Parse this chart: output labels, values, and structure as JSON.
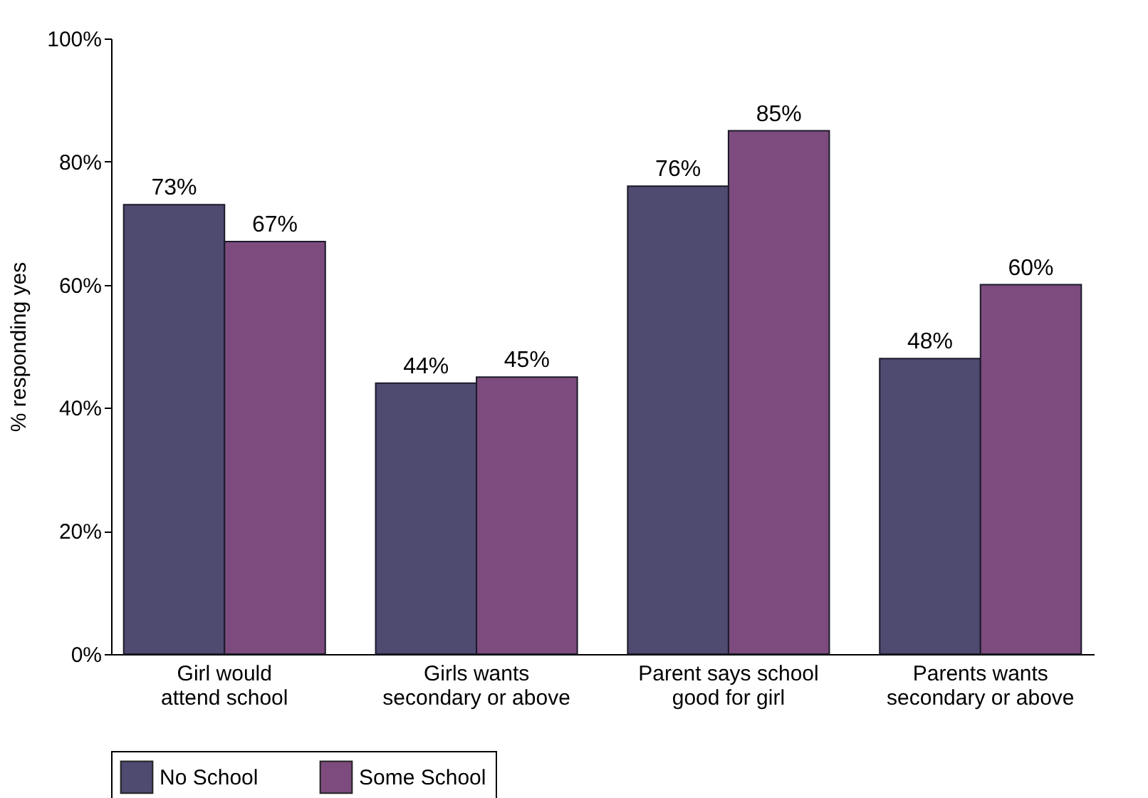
{
  "chart_data": {
    "type": "bar",
    "ylabel": "% responding yes",
    "categories": [
      "Girl would\nattend school",
      "Girls wants\nsecondary or above",
      "Parent says school\ngood for girl",
      "Parents wants\nsecondary or above"
    ],
    "series": [
      {
        "name": "No School",
        "color": "#4f4a70",
        "values": [
          73,
          44,
          76,
          48
        ],
        "value_labels": [
          "73%",
          "44%",
          "76%",
          "48%"
        ]
      },
      {
        "name": "Some School",
        "color": "#7d4b7d",
        "values": [
          67,
          45,
          85,
          60
        ],
        "value_labels": [
          "67%",
          "45%",
          "85%",
          "60%"
        ]
      }
    ],
    "ylim": [
      0,
      100
    ],
    "yticks": [
      {
        "value": 0,
        "label": "0%"
      },
      {
        "value": 20,
        "label": "20%"
      },
      {
        "value": 40,
        "label": "40%"
      },
      {
        "value": 60,
        "label": "60%"
      },
      {
        "value": 80,
        "label": "80%"
      },
      {
        "value": 100,
        "label": "100%"
      }
    ],
    "legend": "bottom"
  }
}
